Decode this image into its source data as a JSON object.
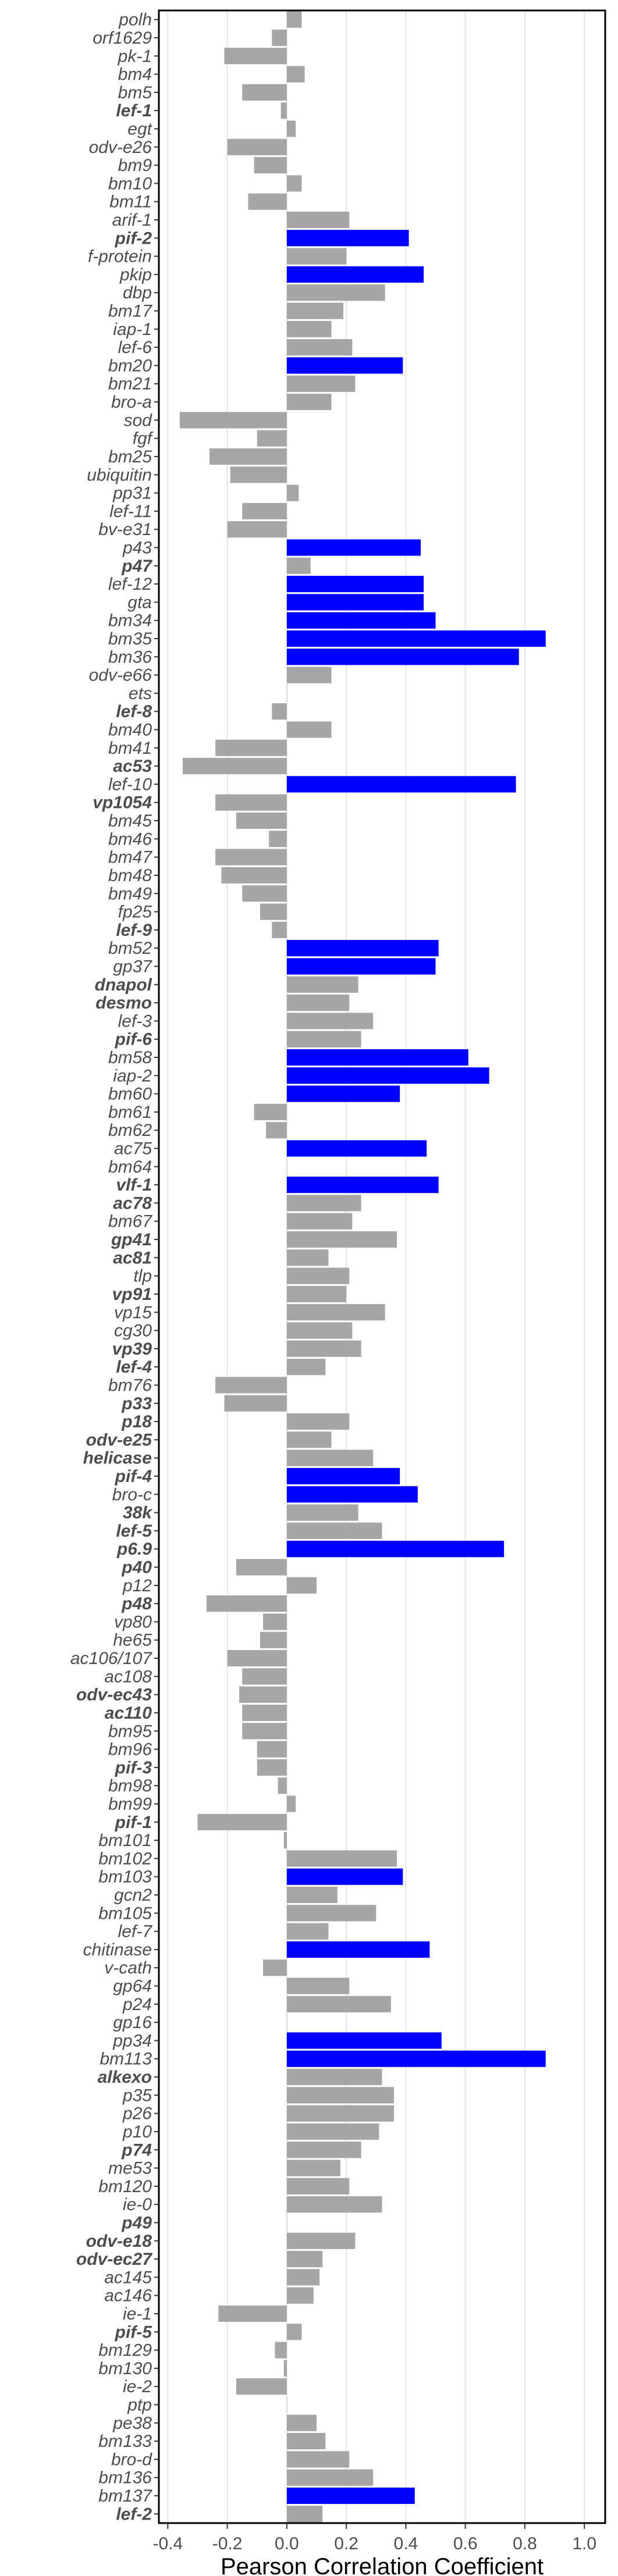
{
  "chart_data": {
    "type": "bar",
    "orientation": "horizontal",
    "xlabel": "Pearson Correlation Coefficient",
    "ylabel": "",
    "xlim": [
      -0.43,
      1.07
    ],
    "xticks": [
      "-0.4",
      "-0.2",
      "0.0",
      "0.2",
      "0.4",
      "0.6",
      "0.8",
      "1.0"
    ],
    "grid": "vertical",
    "colors": {
      "highlight": "#0000ff",
      "default": "#a6a6a6"
    },
    "categories": [
      "polh",
      "orf1629",
      "pk-1",
      "bm4",
      "bm5",
      "lef-1",
      "egt",
      "odv-e26",
      "bm9",
      "bm10",
      "bm11",
      "arif-1",
      "pif-2",
      "f-protein",
      "pkip",
      "dbp",
      "bm17",
      "iap-1",
      "lef-6",
      "bm20",
      "bm21",
      "bro-a",
      "sod",
      "fgf",
      "bm25",
      "ubiquitin",
      "pp31",
      "lef-11",
      "bv-e31",
      "p43",
      "p47",
      "lef-12",
      "gta",
      "bm34",
      "bm35",
      "bm36",
      "odv-e66",
      "ets",
      "lef-8",
      "bm40",
      "bm41",
      "ac53",
      "lef-10",
      "vp1054",
      "bm45",
      "bm46",
      "bm47",
      "bm48",
      "bm49",
      "fp25",
      "lef-9",
      "bm52",
      "gp37",
      "dnapol",
      "desmo",
      "lef-3",
      "pif-6",
      "bm58",
      "iap-2",
      "bm60",
      "bm61",
      "bm62",
      "ac75",
      "bm64",
      "vlf-1",
      "ac78",
      "bm67",
      "gp41",
      "ac81",
      "tlp",
      "vp91",
      "vp15",
      "cg30",
      "vp39",
      "lef-4",
      "bm76",
      "p33",
      "p18",
      "odv-e25",
      "helicase",
      "pif-4",
      "bro-c",
      "38k",
      "lef-5",
      "p6.9",
      "p40",
      "p12",
      "p48",
      "vp80",
      "he65",
      "ac106/107",
      "ac108",
      "odv-ec43",
      "ac110",
      "bm95",
      "bm96",
      "pif-3",
      "bm98",
      "bm99",
      "pif-1",
      "bm101",
      "bm102",
      "bm103",
      "gcn2",
      "bm105",
      "lef-7",
      "chitinase",
      "v-cath",
      "gp64",
      "p24",
      "gp16",
      "pp34",
      "bm113",
      "alkexo",
      "p35",
      "p26",
      "p10",
      "p74",
      "me53",
      "bm120",
      "ie-0",
      "p49",
      "odv-e18",
      "odv-ec27",
      "ac145",
      "ac146",
      "ie-1",
      "pif-5",
      "bm129",
      "bm130",
      "ie-2",
      "ptp",
      "pe38",
      "bm133",
      "bro-d",
      "bm136",
      "bm137",
      "lef-2"
    ],
    "bold_categories": [
      "lef-1",
      "pif-2",
      "p47",
      "lef-8",
      "ac53",
      "vp1054",
      "lef-9",
      "dnapol",
      "desmo",
      "pif-6",
      "vlf-1",
      "ac78",
      "gp41",
      "ac81",
      "vp91",
      "vp39",
      "lef-4",
      "p33",
      "p18",
      "odv-e25",
      "helicase",
      "pif-4",
      "38k",
      "lef-5",
      "p6.9",
      "p40",
      "p48",
      "odv-ec43",
      "ac110",
      "pif-3",
      "pif-1",
      "alkexo",
      "p74",
      "p49",
      "odv-e18",
      "odv-ec27",
      "pif-5",
      "lef-2"
    ],
    "highlighted_categories": [
      "pif-2",
      "pkip",
      "bm20",
      "p43",
      "lef-12",
      "gta",
      "bm34",
      "bm35",
      "bm36",
      "lef-10",
      "bm52",
      "gp37",
      "bm58",
      "iap-2",
      "bm60",
      "ac75",
      "vlf-1",
      "pif-4",
      "bro-c",
      "p6.9",
      "bm103",
      "chitinase",
      "pp34",
      "bm113",
      "bm137"
    ],
    "values": [
      0.05,
      -0.05,
      -0.21,
      0.06,
      -0.15,
      -0.02,
      0.03,
      -0.2,
      -0.11,
      0.05,
      -0.13,
      0.21,
      0.41,
      0.2,
      0.46,
      0.33,
      0.19,
      0.15,
      0.22,
      0.39,
      0.23,
      0.15,
      -0.36,
      -0.1,
      -0.26,
      -0.19,
      0.04,
      -0.15,
      -0.2,
      0.45,
      0.08,
      0.46,
      0.46,
      0.5,
      0.87,
      0.78,
      0.15,
      0.0,
      -0.05,
      0.15,
      -0.24,
      -0.35,
      0.77,
      -0.24,
      -0.17,
      -0.06,
      -0.24,
      -0.22,
      -0.15,
      -0.09,
      -0.05,
      0.51,
      0.5,
      0.24,
      0.21,
      0.29,
      0.25,
      0.61,
      0.68,
      0.38,
      -0.11,
      -0.07,
      0.47,
      0.0,
      0.51,
      0.25,
      0.22,
      0.37,
      0.14,
      0.21,
      0.2,
      0.33,
      0.22,
      0.25,
      0.13,
      -0.24,
      -0.21,
      0.21,
      0.15,
      0.29,
      0.38,
      0.44,
      0.24,
      0.32,
      0.73,
      -0.17,
      0.1,
      -0.27,
      -0.08,
      -0.09,
      -0.2,
      -0.15,
      -0.16,
      -0.15,
      -0.15,
      -0.1,
      -0.1,
      -0.03,
      0.03,
      -0.3,
      -0.01,
      0.37,
      0.39,
      0.17,
      0.3,
      0.14,
      0.48,
      -0.08,
      0.21,
      0.35,
      0.0,
      0.52,
      0.87,
      0.32,
      0.36,
      0.36,
      0.31,
      0.25,
      0.18,
      0.21,
      0.32,
      0.0,
      0.23,
      0.12,
      0.11,
      0.09,
      -0.23,
      0.05,
      -0.04,
      -0.01,
      -0.17,
      0.0,
      0.1,
      0.13,
      0.21,
      0.29,
      0.43,
      0.12
    ]
  }
}
